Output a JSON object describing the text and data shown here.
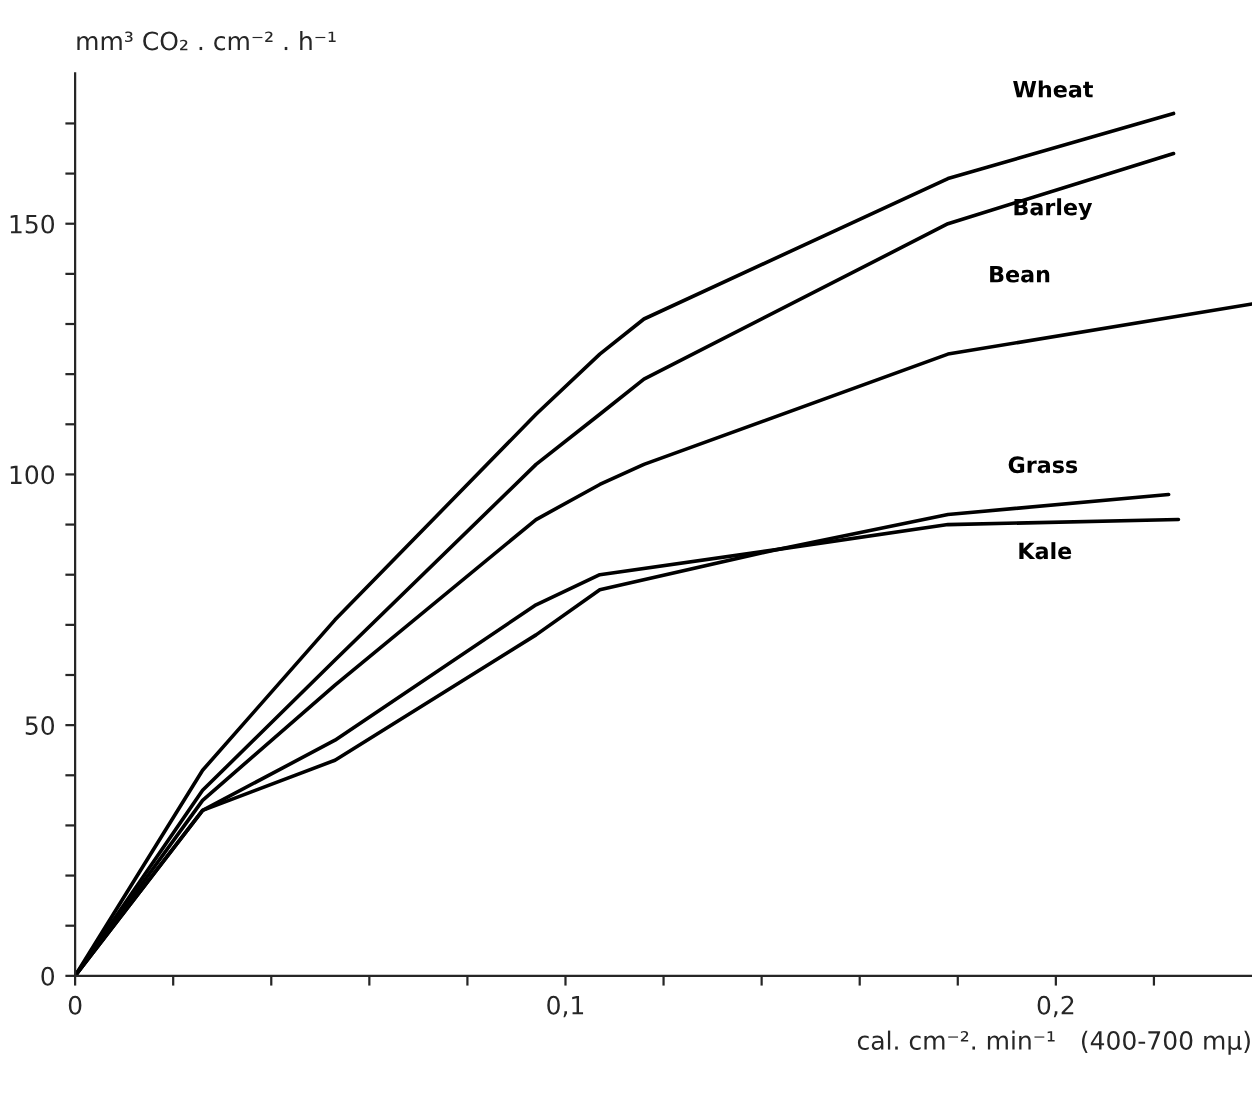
{
  "chart_data": {
    "type": "line",
    "ylabel": "mm³ CO₂ . cm⁻² . h⁻¹",
    "xlabel": "cal. cm⁻². min⁻¹   (400-700 mμ)",
    "xlim": [
      0,
      0.24
    ],
    "ylim": [
      0,
      180
    ],
    "xticks": [
      {
        "value": 0,
        "label": "0"
      },
      {
        "value": 0.02,
        "label": null
      },
      {
        "value": 0.04,
        "label": null
      },
      {
        "value": 0.06,
        "label": null
      },
      {
        "value": 0.08,
        "label": null
      },
      {
        "value": 0.1,
        "label": "0,1"
      },
      {
        "value": 0.12,
        "label": null
      },
      {
        "value": 0.14,
        "label": null
      },
      {
        "value": 0.16,
        "label": null
      },
      {
        "value": 0.18,
        "label": null
      },
      {
        "value": 0.2,
        "label": "0,2"
      },
      {
        "value": 0.22,
        "label": null
      }
    ],
    "yticks": [
      0,
      {
        "value": 10,
        "label": null
      },
      {
        "value": 20,
        "label": null
      },
      {
        "value": 30,
        "label": null
      },
      {
        "value": 40,
        "label": null
      },
      50,
      {
        "value": 60,
        "label": null
      },
      {
        "value": 70,
        "label": null
      },
      {
        "value": 80,
        "label": null
      },
      {
        "value": 90,
        "label": null
      },
      100,
      {
        "value": 110,
        "label": null
      },
      {
        "value": 120,
        "label": null
      },
      {
        "value": 130,
        "label": null
      },
      {
        "value": 140,
        "label": null
      },
      150,
      {
        "value": 160,
        "label": null
      },
      {
        "value": 170,
        "label": null
      }
    ],
    "grid": false,
    "marker": "none",
    "line_style": "solid",
    "series": [
      {
        "name": "Wheat",
        "color": "#000000",
        "x": [
          0,
          0.026,
          0.053,
          0.094,
          0.107,
          0.116,
          0.178,
          0.224
        ],
        "values": [
          0,
          41,
          71,
          112,
          124,
          131,
          159,
          172
        ]
      },
      {
        "name": "Barley",
        "color": "#000000",
        "x": [
          0,
          0.026,
          0.053,
          0.094,
          0.107,
          0.116,
          0.178,
          0.224
        ],
        "values": [
          0,
          37,
          63,
          102,
          112,
          119,
          150,
          164
        ]
      },
      {
        "name": "Bean",
        "color": "#000000",
        "x": [
          0,
          0.026,
          0.053,
          0.094,
          0.107,
          0.116,
          0.178,
          0.24
        ],
        "values": [
          0,
          35,
          58,
          91,
          98,
          102,
          124,
          134
        ]
      },
      {
        "name": "Grass",
        "color": "#000000",
        "x": [
          0,
          0.026,
          0.053,
          0.094,
          0.107,
          0.143,
          0.178,
          0.223
        ],
        "values": [
          0,
          33,
          43,
          68,
          77,
          85,
          92,
          96
        ]
      },
      {
        "name": "Kale",
        "color": "#000000",
        "x": [
          0,
          0.026,
          0.053,
          0.094,
          0.107,
          0.143,
          0.178,
          0.225
        ],
        "values": [
          0,
          33,
          47,
          74,
          80,
          85,
          90,
          91
        ]
      }
    ]
  }
}
